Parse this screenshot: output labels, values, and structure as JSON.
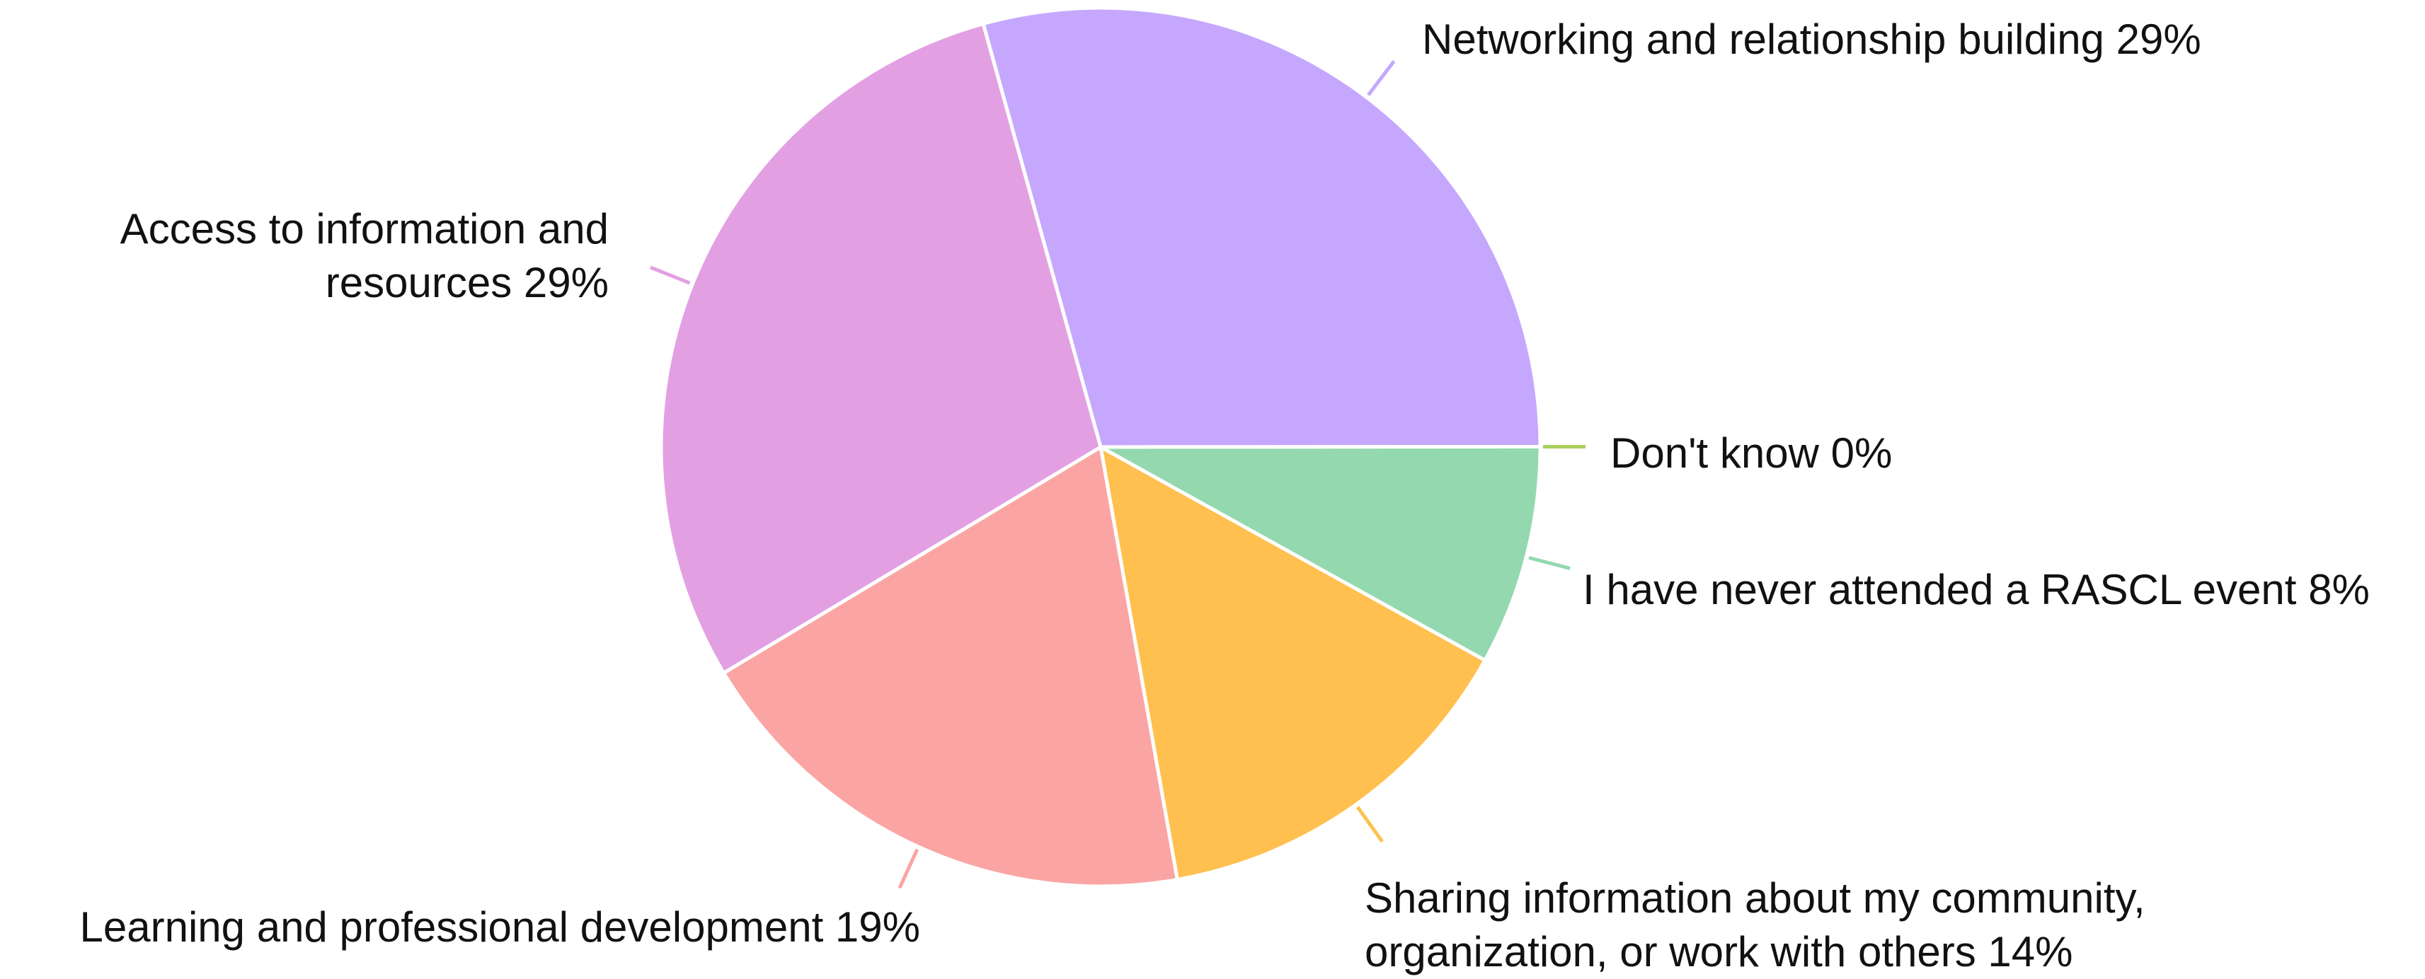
{
  "chart_data": {
    "type": "pie",
    "categories": [
      "Networking and relationship building",
      "Don't know",
      "I have never attended a RASCL event",
      "Sharing information about my community, organization, or work with others",
      "Learning and professional development",
      "Access to information and resources"
    ],
    "values": [
      29,
      0,
      8,
      14,
      19,
      29
    ],
    "value_labels": [
      "29%",
      "0%",
      "8%",
      "14%",
      "19%",
      "29%"
    ],
    "colors": [
      "#c5a8fd",
      "#a9cf5c",
      "#93d8ae",
      "#ffc04f",
      "#fba4a4",
      "#e2a0e3"
    ]
  }
}
